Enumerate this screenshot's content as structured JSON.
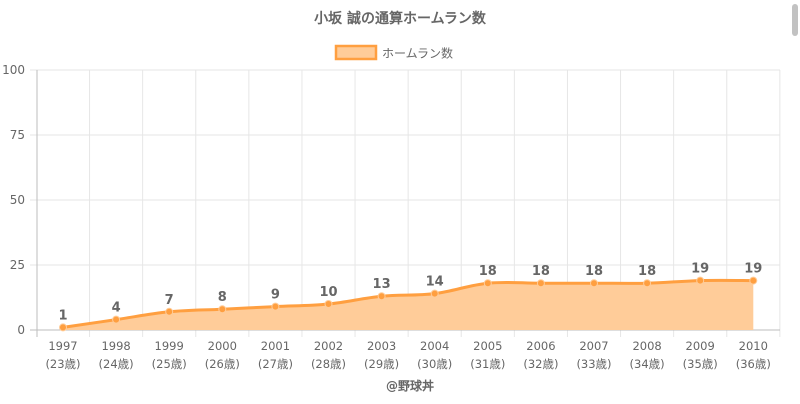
{
  "chart_data": {
    "type": "line",
    "title": "小坂 誠の通算ホームラン数",
    "legend": {
      "label": "ホームラン数",
      "position": "top"
    },
    "categories": [
      [
        "1997",
        "(23歳)"
      ],
      [
        "1998",
        "(24歳)"
      ],
      [
        "1999",
        "(25歳)"
      ],
      [
        "2000",
        "(26歳)"
      ],
      [
        "2001",
        "(27歳)"
      ],
      [
        "2002",
        "(28歳)"
      ],
      [
        "2003",
        "(29歳)"
      ],
      [
        "2004",
        "(30歳)"
      ],
      [
        "2005",
        "(31歳)"
      ],
      [
        "2006",
        "(32歳)"
      ],
      [
        "2007",
        "(33歳)"
      ],
      [
        "2008",
        "(34歳)"
      ],
      [
        "2009",
        "(35歳)"
      ],
      [
        "2010",
        "(36歳)"
      ]
    ],
    "series": [
      {
        "name": "ホームラン数",
        "values": [
          1,
          4,
          7,
          8,
          9,
          10,
          13,
          14,
          18,
          18,
          18,
          18,
          19,
          19
        ],
        "line_color": "#ff9f40",
        "fill_color": "#ffcc99"
      }
    ],
    "ylim": [
      0,
      100
    ],
    "yticks": [
      0,
      25,
      50,
      75,
      100
    ],
    "grid": true,
    "data_labels": true,
    "credit": "@野球丼"
  }
}
